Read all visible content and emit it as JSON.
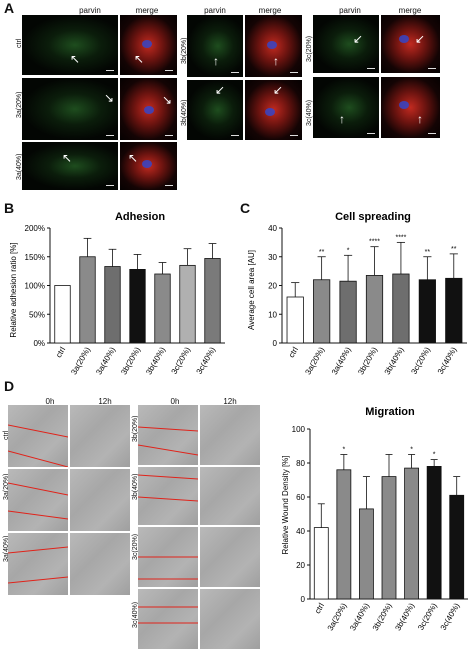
{
  "panelA": {
    "letter": "A",
    "col_headers": [
      "parvin",
      "merge",
      "parvin",
      "merge",
      "parvin",
      "merge"
    ],
    "row_labels": [
      "ctrl",
      "3a(20%)",
      "3a(40%)",
      "3b(20%)",
      "3b(40%)",
      "3c(20%)",
      "3c(40%)"
    ]
  },
  "panelB": {
    "letter": "B",
    "chart_data": {
      "type": "bar",
      "title": "Adhesion",
      "ylabel": "Relative adhesion ratio [%]",
      "categories": [
        "ctrl",
        "3a(20%)",
        "3a(40%)",
        "3b(20%)",
        "3b(40%)",
        "3c(20%)",
        "3c(40%)"
      ],
      "values": [
        100,
        150,
        133,
        128,
        120,
        135,
        147
      ],
      "errors": [
        0,
        32,
        30,
        26,
        20,
        29,
        26
      ],
      "ylim": [
        0,
        200
      ],
      "yticks": [
        "0",
        "50",
        "100",
        "150",
        "200"
      ],
      "tick_suffix": "%",
      "colors": [
        "#ffffff",
        "#8a8a8a",
        "#6e6e6e",
        "#111111",
        "#8a8a8a",
        "#b0b0b0",
        "#7a7a7a"
      ]
    }
  },
  "panelC": {
    "letter": "C",
    "chart_data": {
      "type": "bar",
      "title": "Cell spreading",
      "ylabel": "Average cell area [AU]",
      "categories": [
        "ctrl",
        "3a(20%)",
        "3a(40%)",
        "3b(20%)",
        "3b(40%)",
        "3c(20%)",
        "3c(40%)"
      ],
      "values": [
        16,
        22,
        21.5,
        23.5,
        24,
        22,
        22.5
      ],
      "errors": [
        5,
        8,
        9,
        10,
        11,
        8,
        8.5
      ],
      "ylim": [
        0,
        40
      ],
      "yticks": [
        "0",
        "10",
        "20",
        "30",
        "40"
      ],
      "significance": [
        "",
        "**",
        "*",
        "****",
        "****",
        "**",
        "**"
      ],
      "colors": [
        "#ffffff",
        "#8a8a8a",
        "#6e6e6e",
        "#8a8a8a",
        "#6e6e6e",
        "#111111",
        "#111111"
      ]
    }
  },
  "panelD": {
    "letter": "D",
    "time_headers": [
      "0h",
      "12h",
      "0h",
      "12h"
    ],
    "row_labels_left": [
      "ctrl",
      "3a(20%)",
      "3a(40%)"
    ],
    "row_labels_right": [
      "3b(20%)",
      "3b(40%)",
      "3c(20%)",
      "3c(40%)"
    ],
    "chart_data": {
      "type": "bar",
      "title": "Migration",
      "ylabel": "Relative Wound Density [%]",
      "categories": [
        "ctrl",
        "3a(20%)",
        "3a(40%)",
        "3b(20%)",
        "3b(40%)",
        "3c(20%)",
        "3c(40%)"
      ],
      "values": [
        42,
        76,
        53,
        72,
        77,
        78,
        61
      ],
      "errors": [
        14,
        9,
        19,
        13,
        8,
        4,
        11
      ],
      "ylim": [
        0,
        100
      ],
      "yticks": [
        "0",
        "20",
        "40",
        "60",
        "80",
        "100"
      ],
      "significance": [
        "",
        "*",
        "",
        "",
        "*",
        "*",
        ""
      ],
      "colors": [
        "#ffffff",
        "#8a8a8a",
        "#8a8a8a",
        "#8a8a8a",
        "#8a8a8a",
        "#111111",
        "#111111"
      ]
    }
  }
}
